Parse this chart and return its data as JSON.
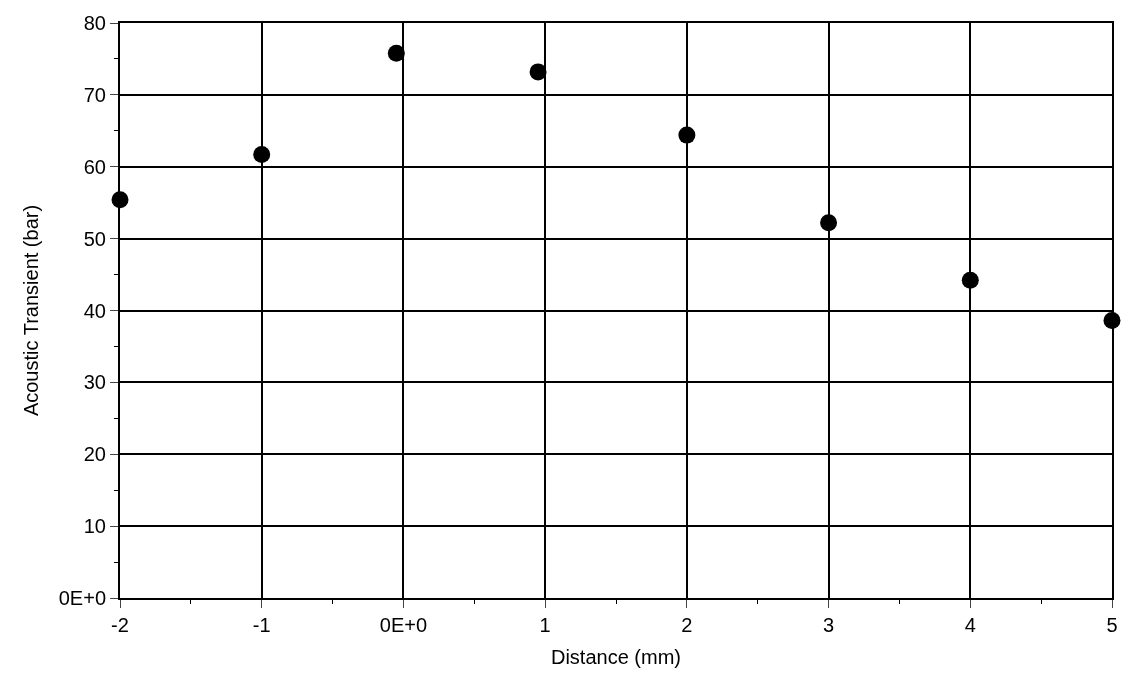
{
  "chart_data": {
    "type": "scatter",
    "xlabel": "Distance (mm)",
    "ylabel": "Acoustic Transient (bar)",
    "x": [
      -2,
      -1,
      -0.05,
      0.95,
      2,
      3,
      4,
      5
    ],
    "series": [
      {
        "color": "#000000",
        "values": [
          55.4,
          61.7,
          75.8,
          73.2,
          64.4,
          52.2,
          44.2,
          38.6
        ]
      }
    ],
    "xlim": [
      -2,
      5
    ],
    "xticks": [
      -2,
      -1,
      {
        "value": 0,
        "label": "0E+0"
      },
      1,
      2,
      3,
      4,
      5
    ],
    "ylim": [
      0,
      80
    ],
    "yticks": [
      {
        "value": 0,
        "label": "0E+0"
      },
      10,
      20,
      30,
      40,
      50,
      60,
      70,
      80
    ],
    "grid": true,
    "marker": "circle",
    "legend": false
  }
}
